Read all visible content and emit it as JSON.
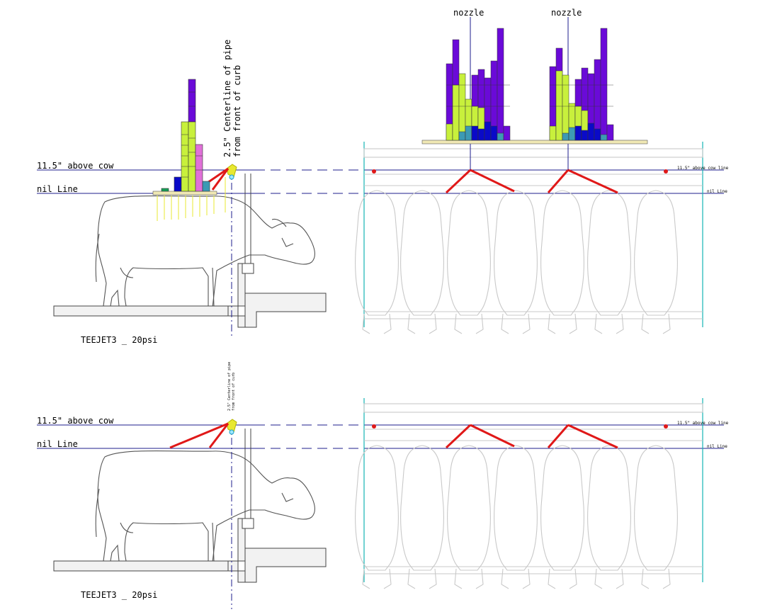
{
  "labels": {
    "above_cow": "11.5\" above cow",
    "nil_line": "nil Line",
    "pipe_line1": "2.5\" Centerline of pipe",
    "pipe_line2": "from front of curb",
    "teejet": "TEEJET3 _ 20psi",
    "nozzle": "nozzle",
    "above_cow_small": "11.5\" above cow line",
    "nil_small": "nil Line"
  },
  "colors": {
    "guide_line": "#1c1c8c",
    "spray_red": "#e01818",
    "frame_cyan": "#14b4b4",
    "purple": "#6a0ad8",
    "lime": "#c8f03c",
    "blue": "#0a0ac8",
    "teal": "#3c9ab4",
    "pink": "#e070d8",
    "green": "#18a058",
    "cream": "#f0e8b4",
    "yellow": "#e8e830"
  },
  "chart_data": [
    {
      "type": "bar",
      "title": "",
      "description_free": true,
      "series": [
        {
          "values": [
            1,
            2,
            4,
            14,
            20,
            6,
            4,
            3,
            1
          ]
        },
        {
          "values": [
            0,
            2,
            1,
            0,
            2,
            3,
            1,
            1,
            1
          ]
        }
      ]
    },
    {
      "type": "bar",
      "title": "",
      "series": [
        {
          "values": [
            8,
            7,
            9,
            6,
            10,
            12,
            10,
            14,
            6
          ]
        }
      ]
    }
  ]
}
